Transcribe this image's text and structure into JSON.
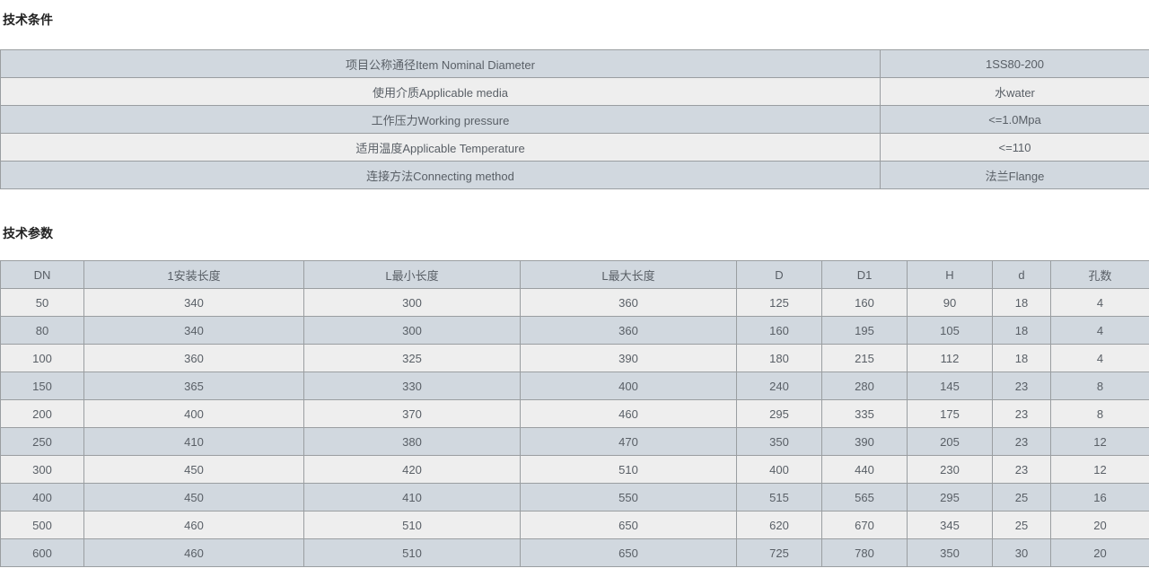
{
  "page": {
    "section1_title": "技术条件",
    "section2_title": "技术参数"
  },
  "conditions_table": {
    "rows": [
      {
        "label": "项目公称通径Item Nominal Diameter",
        "value": "1SS80-200"
      },
      {
        "label": "使用介质Applicable media",
        "value": "水water"
      },
      {
        "label": "工作压力Working pressure",
        "value": "<=1.0Mpa"
      },
      {
        "label": "适用温度Applicable Temperature",
        "value": "<=110"
      },
      {
        "label": "连接方法Connecting method",
        "value": "法兰Flange"
      }
    ]
  },
  "parameters_table": {
    "headers": [
      "DN",
      "1安装长度",
      "L最小长度",
      "L最大长度",
      "D",
      "D1",
      "H",
      "d",
      "孔数"
    ],
    "rows": [
      [
        "50",
        "340",
        "300",
        "360",
        "125",
        "160",
        "90",
        "18",
        "4"
      ],
      [
        "80",
        "340",
        "300",
        "360",
        "160",
        "195",
        "105",
        "18",
        "4"
      ],
      [
        "100",
        "360",
        "325",
        "390",
        "180",
        "215",
        "112",
        "18",
        "4"
      ],
      [
        "150",
        "365",
        "330",
        "400",
        "240",
        "280",
        "145",
        "23",
        "8"
      ],
      [
        "200",
        "400",
        "370",
        "460",
        "295",
        "335",
        "175",
        "23",
        "8"
      ],
      [
        "250",
        "410",
        "380",
        "470",
        "350",
        "390",
        "205",
        "23",
        "12"
      ],
      [
        "300",
        "450",
        "420",
        "510",
        "400",
        "440",
        "230",
        "23",
        "12"
      ],
      [
        "400",
        "450",
        "410",
        "550",
        "515",
        "565",
        "295",
        "25",
        "16"
      ],
      [
        "500",
        "460",
        "510",
        "650",
        "620",
        "670",
        "345",
        "25",
        "20"
      ],
      [
        "600",
        "460",
        "510",
        "650",
        "725",
        "780",
        "350",
        "30",
        "20"
      ]
    ]
  },
  "colors": {
    "row_blue": "#d1d8df",
    "row_light": "#eeeeee",
    "border": "#9a9ea1",
    "cell_text": "#595f66",
    "title_text": "#222222"
  }
}
